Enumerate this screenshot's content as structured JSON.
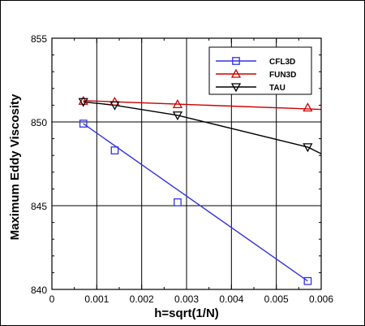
{
  "chart_data": {
    "type": "line",
    "xlabel": "h=sqrt(1/N)",
    "ylabel": "Maximum Eddy Viscosity",
    "xlim": [
      0,
      0.006
    ],
    "ylim": [
      840,
      855
    ],
    "xticks": [
      0,
      0.001,
      0.002,
      0.003,
      0.004,
      0.005,
      0.006
    ],
    "xtick_labels": [
      "0",
      "0.001",
      "0.002",
      "0.003",
      "0.004",
      "0.005",
      "0.006"
    ],
    "yticks": [
      840,
      845,
      850,
      855
    ],
    "ytick_labels": [
      "840",
      "845",
      "850",
      "855"
    ],
    "grid": true,
    "legend_position": "top-right",
    "series": [
      {
        "name": "CFL3D",
        "color": "#3333dd",
        "marker": "square",
        "x": [
          0.0007,
          0.0014,
          0.0028,
          0.0057
        ],
        "y": [
          849.9,
          848.3,
          845.2,
          840.5
        ],
        "line_x": [
          0.0007,
          0.0057
        ],
        "line_y": [
          849.9,
          840.5
        ]
      },
      {
        "name": "FUN3D",
        "color": "#cc0000",
        "marker": "triangle-up",
        "x": [
          0.0007,
          0.0014,
          0.0028,
          0.0057
        ],
        "y": [
          851.25,
          851.2,
          851.05,
          850.85
        ],
        "line_x": [
          0.0007,
          0.006
        ],
        "line_y": [
          851.27,
          850.75
        ]
      },
      {
        "name": "TAU",
        "color": "#000000",
        "marker": "triangle-down",
        "x": [
          0.0007,
          0.0014,
          0.0028,
          0.0057
        ],
        "y": [
          851.2,
          851.0,
          850.4,
          848.5
        ],
        "curve_x": [
          0.0007,
          0.0014,
          0.0028,
          0.0057,
          0.006
        ],
        "curve_y": [
          851.2,
          851.0,
          850.4,
          848.5,
          848.1
        ]
      }
    ]
  }
}
